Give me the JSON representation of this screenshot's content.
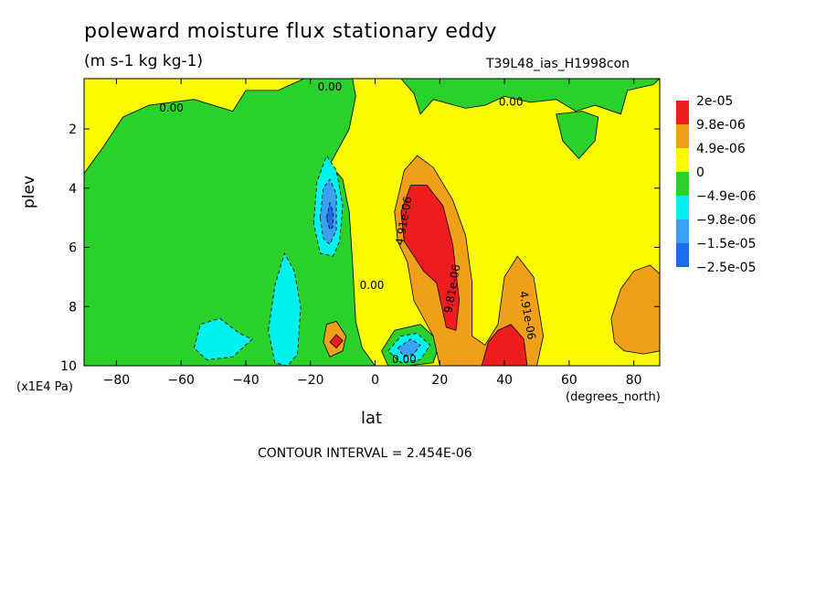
{
  "chart_data": {
    "type": "heatmap",
    "title": "poleward moisture flux stationary eddy",
    "subtitle": "(m s-1 kg kg-1)",
    "run_label": "T39L48_ias_H1998con",
    "xlabel": "lat",
    "ylabel": "plev",
    "x_units": "(degrees_north)",
    "y_units": "(x1E4 Pa)",
    "xlim": [
      -90,
      88
    ],
    "ylim": [
      10,
      0.3
    ],
    "x_ticks": [
      -80,
      -60,
      -40,
      -20,
      0,
      20,
      40,
      60,
      80
    ],
    "y_ticks": [
      2,
      4,
      6,
      8,
      10
    ],
    "contour_interval": "CONTOUR INTERVAL = 2.454E-06",
    "legend": {
      "placement": "right",
      "levels": [
        "2e-05",
        "9.8e-06",
        "4.9e-06",
        "0",
        "-4.9e-06",
        "-9.8e-06",
        "-1.5e-05",
        "-2.5e-05"
      ],
      "colors": [
        "#ee1c1c",
        "#f0a018",
        "#fafa00",
        "#2ad12a",
        "#00f0f0",
        "#3aa0f0",
        "#1c6cf0"
      ]
    },
    "contour_labels": [
      {
        "text": "0.00",
        "x": -63,
        "y": 1.3
      },
      {
        "text": "0.00",
        "x": -14,
        "y": 0.6
      },
      {
        "text": "0.00",
        "x": 42,
        "y": 1.1
      },
      {
        "text": "0.00",
        "x": -1,
        "y": 7.3
      },
      {
        "text": "0.00",
        "x": 9,
        "y": 9.8
      },
      {
        "text": "4.91e-06",
        "x": 9,
        "y": 5.1
      },
      {
        "text": "9.81e-06",
        "x": 24,
        "y": 7.4
      },
      {
        "text": "4.91e-06",
        "x": 47,
        "y": 8.3
      }
    ],
    "regions": [
      {
        "sign": "zero",
        "color": "#fafa00",
        "poly": [
          [
            -90,
            0.3
          ],
          [
            88,
            0.3
          ],
          [
            88,
            10
          ],
          [
            -90,
            10
          ]
        ]
      },
      {
        "sign": "negative",
        "color": "#2ad12a",
        "poly": [
          [
            -90,
            3.5
          ],
          [
            -84,
            2.6
          ],
          [
            -78,
            1.6
          ],
          [
            -70,
            1.2
          ],
          [
            -56,
            1.0
          ],
          [
            -44,
            1.4
          ],
          [
            -40,
            0.7
          ],
          [
            -30,
            0.7
          ],
          [
            -22,
            0.3
          ],
          [
            -7,
            0.3
          ],
          [
            -6,
            0.9
          ],
          [
            -8,
            2.0
          ],
          [
            -14,
            3.2
          ],
          [
            -10,
            3.7
          ],
          [
            -8,
            4.8
          ],
          [
            -7,
            6.5
          ],
          [
            -6,
            8.5
          ],
          [
            -4,
            9.4
          ],
          [
            0,
            10
          ],
          [
            -90,
            10
          ]
        ]
      },
      {
        "sign": "negative",
        "color": "#2ad12a",
        "poly": [
          [
            8,
            0.3
          ],
          [
            12,
            0.8
          ],
          [
            14,
            1.5
          ],
          [
            18,
            1.0
          ],
          [
            28,
            1.3
          ],
          [
            34,
            1.2
          ],
          [
            40,
            0.9
          ],
          [
            48,
            1.1
          ],
          [
            56,
            1.0
          ],
          [
            62,
            1.4
          ],
          [
            68,
            1.2
          ],
          [
            76,
            1.5
          ],
          [
            78,
            0.7
          ],
          [
            86,
            0.5
          ],
          [
            88,
            0.3
          ]
        ]
      },
      {
        "sign": "negative",
        "color": "#2ad12a",
        "poly": [
          [
            56,
            1.5
          ],
          [
            58,
            2.4
          ],
          [
            63,
            3.0
          ],
          [
            68,
            2.4
          ],
          [
            69,
            1.6
          ],
          [
            64,
            1.4
          ]
        ]
      },
      {
        "sign": "negative",
        "color": "#2ad12a",
        "poly": [
          [
            2,
            9.5
          ],
          [
            6,
            8.8
          ],
          [
            14,
            8.6
          ],
          [
            20,
            9.2
          ],
          [
            18,
            9.9
          ],
          [
            10,
            10
          ],
          [
            4,
            10
          ]
        ]
      },
      {
        "sign": "negative",
        "color": "#00f0f0",
        "poly": [
          [
            -56,
            9.4
          ],
          [
            -54,
            8.6
          ],
          [
            -48,
            8.4
          ],
          [
            -42,
            8.9
          ],
          [
            -38,
            9.1
          ],
          [
            -44,
            9.7
          ],
          [
            -52,
            9.8
          ]
        ]
      },
      {
        "sign": "negative",
        "color": "#00f0f0",
        "poly": [
          [
            -33,
            8.8
          ],
          [
            -31,
            7.3
          ],
          [
            -28,
            6.2
          ],
          [
            -25,
            6.8
          ],
          [
            -23,
            8.0
          ],
          [
            -24,
            9.6
          ],
          [
            -27,
            10
          ],
          [
            -31,
            9.9
          ]
        ]
      },
      {
        "sign": "negative",
        "color": "#00f0f0",
        "poly": [
          [
            -19,
            5.2
          ],
          [
            -18,
            3.8
          ],
          [
            -15,
            2.9
          ],
          [
            -12,
            3.4
          ],
          [
            -10,
            4.6
          ],
          [
            -11,
            5.8
          ],
          [
            -13,
            6.3
          ],
          [
            -17,
            6.2
          ]
        ]
      },
      {
        "sign": "negative",
        "color": "#3aa0f0",
        "poly": [
          [
            -17,
            5.0
          ],
          [
            -16,
            4.0
          ],
          [
            -14,
            3.7
          ],
          [
            -12,
            4.2
          ],
          [
            -12,
            5.4
          ],
          [
            -14,
            5.9
          ],
          [
            -16,
            5.7
          ]
        ]
      },
      {
        "sign": "negative",
        "color": "#1c6cf0",
        "poly": [
          [
            -15,
            5.0
          ],
          [
            -14,
            4.5
          ],
          [
            -13,
            4.8
          ],
          [
            -13,
            5.3
          ],
          [
            -14,
            5.4
          ]
        ]
      },
      {
        "sign": "negative",
        "color": "#00f0f0",
        "poly": [
          [
            4,
            9.5
          ],
          [
            8,
            9.0
          ],
          [
            13,
            8.9
          ],
          [
            17,
            9.3
          ],
          [
            14,
            9.8
          ],
          [
            8,
            9.9
          ]
        ]
      },
      {
        "sign": "negative",
        "color": "#3aa0f0",
        "poly": [
          [
            7,
            9.4
          ],
          [
            11,
            9.1
          ],
          [
            14,
            9.3
          ],
          [
            12,
            9.6
          ],
          [
            9,
            9.7
          ]
        ]
      },
      {
        "sign": "positive",
        "color": "#f0a018",
        "poly": [
          [
            -16,
            9.2
          ],
          [
            -15,
            8.6
          ],
          [
            -12,
            8.5
          ],
          [
            -9,
            9.0
          ],
          [
            -10,
            9.5
          ],
          [
            -14,
            9.7
          ]
        ]
      },
      {
        "sign": "positive",
        "color": "#ee1c1c",
        "poly": [
          [
            -14,
            9.2
          ],
          [
            -12,
            8.95
          ],
          [
            -10,
            9.15
          ],
          [
            -12,
            9.4
          ]
        ]
      },
      {
        "sign": "positive",
        "color": "#f0a018",
        "poly": [
          [
            6,
            4.8
          ],
          [
            9,
            3.4
          ],
          [
            13,
            2.9
          ],
          [
            18,
            3.3
          ],
          [
            24,
            4.4
          ],
          [
            28,
            5.6
          ],
          [
            30,
            7.2
          ],
          [
            30,
            9.0
          ],
          [
            34,
            9.3
          ],
          [
            38,
            8.6
          ],
          [
            40,
            7.0
          ],
          [
            44,
            6.3
          ],
          [
            49,
            7.0
          ],
          [
            52,
            9.0
          ],
          [
            50,
            10
          ],
          [
            20,
            10
          ],
          [
            18,
            9.0
          ],
          [
            12,
            7.8
          ],
          [
            10,
            6.5
          ],
          [
            7,
            5.8
          ]
        ]
      },
      {
        "sign": "positive",
        "color": "#ee1c1c",
        "poly": [
          [
            8,
            4.8
          ],
          [
            11,
            3.9
          ],
          [
            16,
            3.9
          ],
          [
            21,
            4.6
          ],
          [
            24,
            5.9
          ],
          [
            26,
            7.8
          ],
          [
            25,
            8.8
          ],
          [
            22,
            8.7
          ],
          [
            19,
            7.2
          ],
          [
            15,
            6.8
          ],
          [
            12,
            6.3
          ],
          [
            9,
            5.8
          ]
        ]
      },
      {
        "sign": "positive",
        "color": "#ee1c1c",
        "poly": [
          [
            33,
            10
          ],
          [
            35,
            9.2
          ],
          [
            38,
            8.8
          ],
          [
            42,
            8.6
          ],
          [
            46,
            9.1
          ],
          [
            47,
            10
          ]
        ]
      },
      {
        "sign": "positive",
        "color": "#f0a018",
        "poly": [
          [
            73,
            8.4
          ],
          [
            76,
            7.4
          ],
          [
            80,
            6.8
          ],
          [
            85,
            6.6
          ],
          [
            88,
            6.9
          ],
          [
            88,
            9.5
          ],
          [
            83,
            9.6
          ],
          [
            77,
            9.5
          ],
          [
            74,
            9.2
          ]
        ]
      }
    ]
  }
}
